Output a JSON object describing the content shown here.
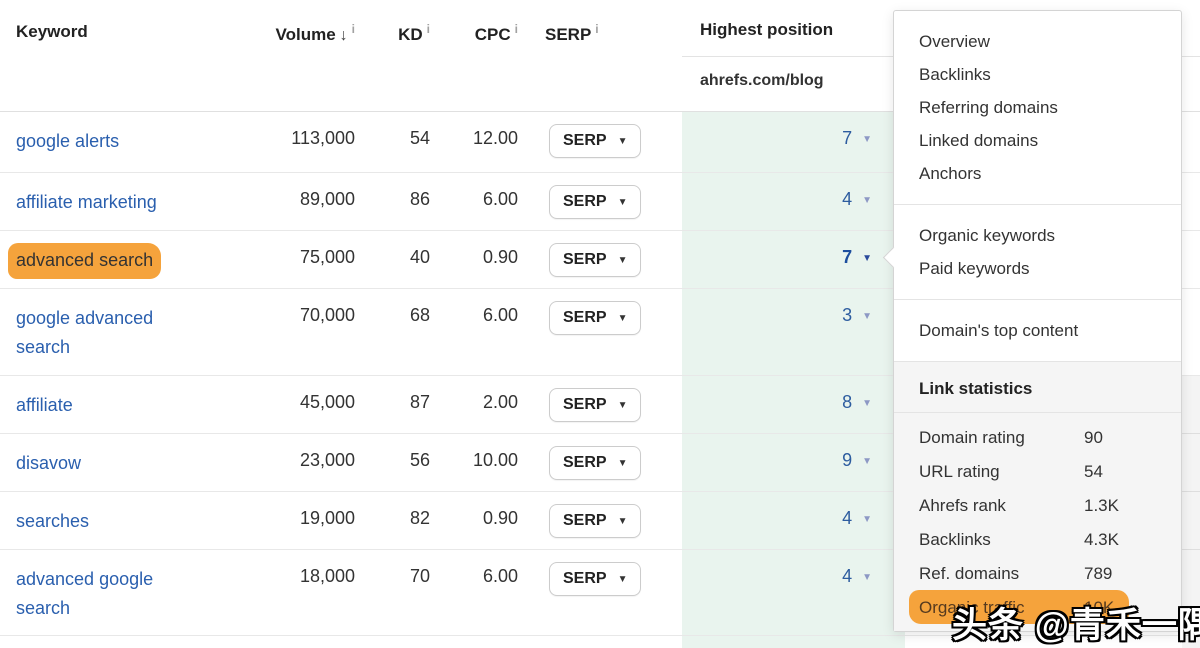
{
  "icons": {
    "sort_desc": "↓",
    "caret_down": "▼",
    "info": "i"
  },
  "colors": {
    "highlight_orange": "#F5A33C",
    "link_blue": "#2A5FAE",
    "position_blue": "#2D5C9F",
    "green_column_bg": "#E9F4EE"
  },
  "table": {
    "columns": {
      "keyword": "Keyword",
      "volume": "Volume",
      "kd": "KD",
      "cpc": "CPC",
      "serp": "SERP",
      "highest_position": "Highest position",
      "target": "ahrefs.com/blog"
    },
    "serp_button_label": "SERP",
    "rows": [
      {
        "keyword": "google alerts",
        "volume": "113,000",
        "kd": "54",
        "cpc": "12.00",
        "position": "7",
        "highlighted": false,
        "active": false
      },
      {
        "keyword": "affiliate marketing",
        "volume": "89,000",
        "kd": "86",
        "cpc": "6.00",
        "position": "4",
        "highlighted": false,
        "active": false
      },
      {
        "keyword": "advanced search",
        "volume": "75,000",
        "kd": "40",
        "cpc": "0.90",
        "position": "7",
        "highlighted": true,
        "active": true
      },
      {
        "keyword": "google advanced search",
        "volume": "70,000",
        "kd": "68",
        "cpc": "6.00",
        "position": "3",
        "highlighted": false,
        "active": false
      },
      {
        "keyword": "affiliate",
        "volume": "45,000",
        "kd": "87",
        "cpc": "2.00",
        "position": "8",
        "highlighted": false,
        "active": false
      },
      {
        "keyword": "disavow",
        "volume": "23,000",
        "kd": "56",
        "cpc": "10.00",
        "position": "9",
        "highlighted": false,
        "active": false
      },
      {
        "keyword": "searches",
        "volume": "19,000",
        "kd": "82",
        "cpc": "0.90",
        "position": "4",
        "highlighted": false,
        "active": false
      },
      {
        "keyword": "advanced google search",
        "volume": "18,000",
        "kd": "70",
        "cpc": "6.00",
        "position": "4",
        "highlighted": false,
        "active": false
      }
    ]
  },
  "menu": {
    "sections": [
      {
        "items": [
          "Overview",
          "Backlinks",
          "Referring domains",
          "Linked domains",
          "Anchors"
        ]
      },
      {
        "items": [
          "Organic keywords",
          "Paid keywords"
        ]
      },
      {
        "items": [
          "Domain's top content"
        ]
      }
    ],
    "link_stats": {
      "title": "Link statistics",
      "rows": [
        {
          "label": "Domain rating",
          "value": "90",
          "highlighted": false
        },
        {
          "label": "URL rating",
          "value": "54",
          "highlighted": false
        },
        {
          "label": "Ahrefs rank",
          "value": "1.3K",
          "highlighted": false
        },
        {
          "label": "Backlinks",
          "value": "4.3K",
          "highlighted": false
        },
        {
          "label": "Ref. domains",
          "value": "789",
          "highlighted": false
        },
        {
          "label": "Organic traffic",
          "value": "10K",
          "highlighted": true
        }
      ]
    }
  },
  "watermark": "头条 @青禾一隅"
}
